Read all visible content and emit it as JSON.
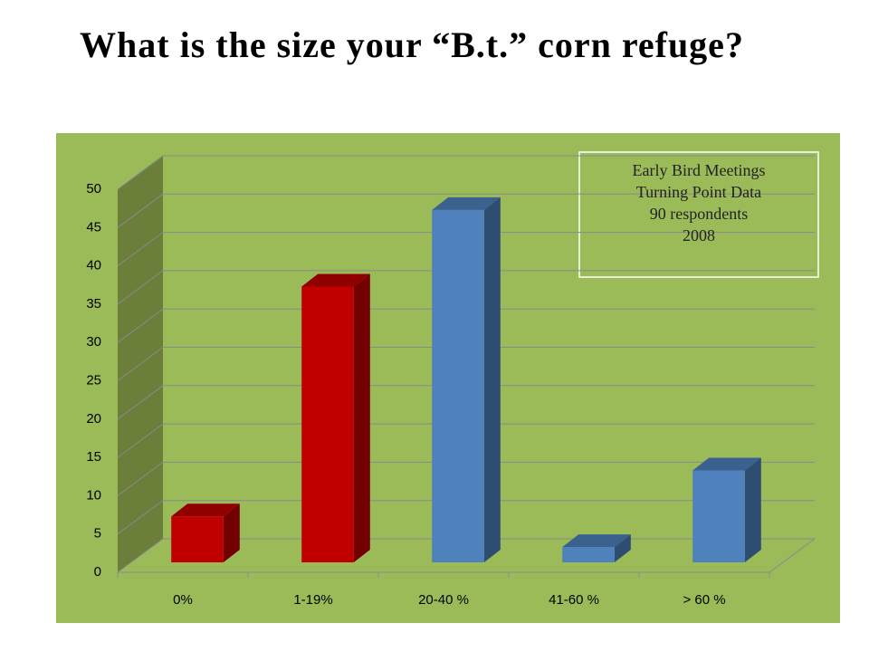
{
  "chart_data": {
    "type": "bar3d",
    "title": "What is the size your “B.t.” corn refuge?",
    "annotation": [
      "Early Bird Meetings",
      "Turning Point Data",
      "90 respondents",
      "2008"
    ],
    "categories": [
      "0%",
      "1-19%",
      "20-40 %",
      "41-60 %",
      "> 60 %"
    ],
    "values": [
      6,
      36,
      46,
      2,
      12
    ],
    "colors": [
      "#c00000",
      "#c00000",
      "#4f81bd",
      "#4f81bd",
      "#4f81bd"
    ],
    "ylim": [
      0,
      50
    ],
    "yticks": [
      0,
      5,
      10,
      15,
      20,
      25,
      30,
      35,
      40,
      45,
      50
    ],
    "grid": true
  }
}
